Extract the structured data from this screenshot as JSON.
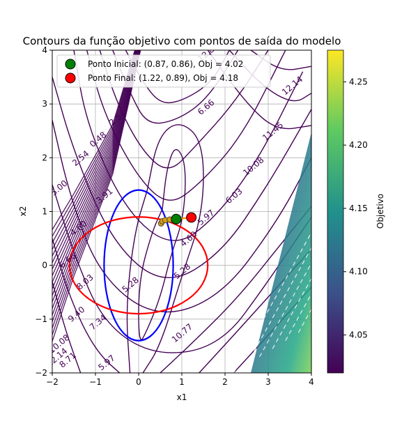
{
  "chart_data": {
    "type": "contour",
    "title": "Contours da função objetivo com pontos de saída do modelo",
    "xlabel": "x1",
    "ylabel": "x2",
    "xlim": [
      -2,
      4
    ],
    "ylim": [
      -2,
      4
    ],
    "xticks": [
      -2,
      -1,
      0,
      1,
      2,
      3,
      4
    ],
    "yticks": [
      -2,
      -1,
      0,
      1,
      2,
      3,
      4
    ],
    "grid": true,
    "legend_position": "top-left",
    "legend": [
      {
        "label": "Ponto Inicial: (0.87, 0.86), Obj = 4.02",
        "color": "#008000"
      },
      {
        "label": "Ponto Final: (1.22, 0.89), Obj = 4.18",
        "color": "#ff0000"
      }
    ],
    "points": {
      "initial": {
        "x": 0.87,
        "y": 0.86,
        "obj": 4.02,
        "color": "#008000"
      },
      "final": {
        "x": 1.22,
        "y": 0.89,
        "obj": 4.18,
        "color": "#ff0000"
      }
    },
    "trajectory": [
      [
        0.52,
        0.78
      ],
      [
        0.55,
        0.82
      ],
      [
        0.62,
        0.84
      ],
      [
        0.72,
        0.85
      ],
      [
        0.87,
        0.86
      ],
      [
        1.22,
        0.89
      ]
    ],
    "constraint_ellipses": [
      {
        "cx": 0.0,
        "cy": 0.0,
        "rx": 0.8,
        "ry": 1.4,
        "color": "#0000ff"
      },
      {
        "cx": 0.0,
        "cy": 0.0,
        "rx": 1.6,
        "ry": 0.9,
        "color": "#ff0000"
      }
    ],
    "contour_labels": [
      {
        "text": "12.83",
        "x": 1.65,
        "y": 3.92
      },
      {
        "text": "6.66",
        "x": 1.6,
        "y": 2.9
      },
      {
        "text": "2.54",
        "x": -0.45,
        "y": 2.7
      },
      {
        "text": "0.48",
        "x": -0.9,
        "y": 2.3
      },
      {
        "text": "2.54",
        "x": -1.3,
        "y": 1.95
      },
      {
        "text": "3.91",
        "x": -0.75,
        "y": 1.25
      },
      {
        "text": "5.00",
        "x": -1.8,
        "y": 1.4
      },
      {
        "text": "4.60",
        "x": -1.35,
        "y": 0.65
      },
      {
        "text": "6.66",
        "x": -1.6,
        "y": 0.05
      },
      {
        "text": "8.03",
        "x": -1.2,
        "y": -0.35
      },
      {
        "text": "9.40",
        "x": -1.4,
        "y": -0.95
      },
      {
        "text": "7.34",
        "x": -0.9,
        "y": -1.1
      },
      {
        "text": "5.28",
        "x": -0.15,
        "y": -0.4
      },
      {
        "text": "5.28",
        "x": 1.05,
        "y": -0.15
      },
      {
        "text": "4.60",
        "x": 1.2,
        "y": 0.45
      },
      {
        "text": "5.97",
        "x": 1.6,
        "y": 0.85
      },
      {
        "text": "6.03",
        "x": 2.25,
        "y": 1.25
      },
      {
        "text": "10.08",
        "x": 2.7,
        "y": 1.8
      },
      {
        "text": "11.45",
        "x": 3.15,
        "y": 2.45
      },
      {
        "text": "12.14",
        "x": 3.6,
        "y": 3.3
      },
      {
        "text": "10.77",
        "x": 1.05,
        "y": -1.3
      },
      {
        "text": "10.08",
        "x": -1.8,
        "y": -1.5
      },
      {
        "text": "12.14",
        "x": -1.85,
        "y": -1.75
      },
      {
        "text": "8.71",
        "x": -1.6,
        "y": -1.8
      },
      {
        "text": "5.97",
        "x": -0.7,
        "y": -1.85
      }
    ],
    "colorbar": {
      "label": "Objetivo",
      "range": [
        4.02,
        4.275
      ],
      "ticks": [
        4.05,
        4.1,
        4.15,
        4.2,
        4.25
      ],
      "colors": [
        "#440154",
        "#3b528b",
        "#21918c",
        "#5ec962",
        "#fde725"
      ]
    }
  }
}
